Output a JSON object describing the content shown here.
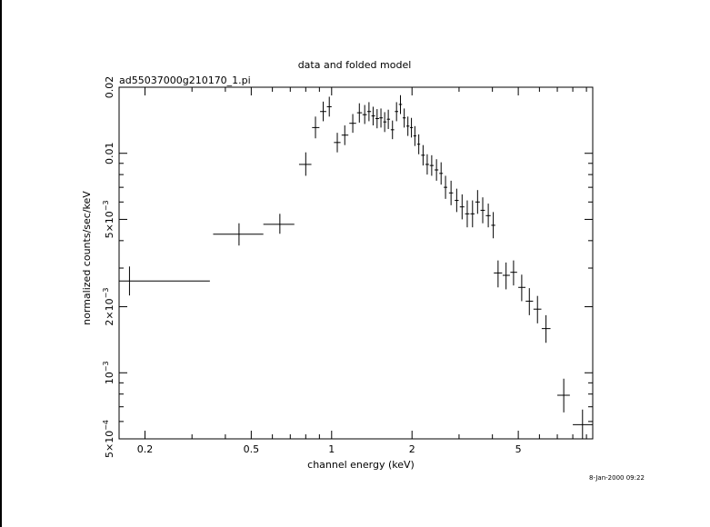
{
  "chart_data": {
    "type": "scatter",
    "title": "data and folded model",
    "subtitle": "ad55037000g210170_1.pi",
    "xlabel": "channel energy (keV)",
    "ylabel": "normalized counts/sec/keV",
    "x_scale": "log",
    "y_scale": "log",
    "xlim": [
      0.16,
      9.5
    ],
    "ylim": [
      0.0005,
      0.02
    ],
    "x_ticks": [
      {
        "value": 0.2,
        "label": "0.2"
      },
      {
        "value": 0.5,
        "label": "0.5"
      },
      {
        "value": 1,
        "label": "1"
      },
      {
        "value": 2,
        "label": "2"
      },
      {
        "value": 5,
        "label": "5"
      }
    ],
    "y_ticks": [
      {
        "value": 0.0005,
        "label": "5×10",
        "exp": "−4"
      },
      {
        "value": 0.001,
        "label": "10",
        "exp": "−3"
      },
      {
        "value": 0.002,
        "label": "2×10",
        "exp": "−3"
      },
      {
        "value": 0.005,
        "label": "5×10",
        "exp": "−3"
      },
      {
        "value": 0.01,
        "label": "0.01",
        "exp": ""
      },
      {
        "value": 0.02,
        "label": "0.02",
        "exp": ""
      }
    ],
    "grid": false,
    "series": [
      {
        "points": [
          {
            "x": 0.175,
            "y": 0.00262,
            "xlo": 0.16,
            "xhi": 0.35,
            "ylo": 0.00225,
            "yhi": 0.00305
          },
          {
            "x": 0.45,
            "y": 0.00428,
            "xlo": 0.36,
            "xhi": 0.555,
            "ylo": 0.0038,
            "yhi": 0.0048
          },
          {
            "x": 0.64,
            "y": 0.00475,
            "xlo": 0.555,
            "xhi": 0.725,
            "ylo": 0.0043,
            "yhi": 0.0053
          },
          {
            "x": 0.8,
            "y": 0.0089,
            "xlo": 0.755,
            "xhi": 0.84,
            "ylo": 0.0079,
            "yhi": 0.0101
          },
          {
            "x": 0.87,
            "y": 0.0131,
            "xlo": 0.845,
            "xhi": 0.9,
            "ylo": 0.0117,
            "yhi": 0.0147
          },
          {
            "x": 0.93,
            "y": 0.0155,
            "xlo": 0.905,
            "xhi": 0.955,
            "ylo": 0.014,
            "yhi": 0.0172
          },
          {
            "x": 0.98,
            "y": 0.0163,
            "xlo": 0.96,
            "xhi": 1.0,
            "ylo": 0.0147,
            "yhi": 0.0181
          },
          {
            "x": 1.05,
            "y": 0.0112,
            "xlo": 1.02,
            "xhi": 1.08,
            "ylo": 0.0101,
            "yhi": 0.0124
          },
          {
            "x": 1.12,
            "y": 0.0121,
            "xlo": 1.09,
            "xhi": 1.155,
            "ylo": 0.0109,
            "yhi": 0.0134
          },
          {
            "x": 1.2,
            "y": 0.0137,
            "xlo": 1.165,
            "xhi": 1.235,
            "ylo": 0.0124,
            "yhi": 0.0151
          },
          {
            "x": 1.27,
            "y": 0.0153,
            "xlo": 1.245,
            "xhi": 1.3,
            "ylo": 0.0138,
            "yhi": 0.0169
          },
          {
            "x": 1.33,
            "y": 0.015,
            "xlo": 1.305,
            "xhi": 1.355,
            "ylo": 0.0136,
            "yhi": 0.0166
          },
          {
            "x": 1.38,
            "y": 0.0155,
            "xlo": 1.36,
            "xhi": 1.405,
            "ylo": 0.014,
            "yhi": 0.0171
          },
          {
            "x": 1.43,
            "y": 0.0148,
            "xlo": 1.41,
            "xhi": 1.455,
            "ylo": 0.0134,
            "yhi": 0.0163
          },
          {
            "x": 1.48,
            "y": 0.0144,
            "xlo": 1.46,
            "xhi": 1.505,
            "ylo": 0.013,
            "yhi": 0.0159
          },
          {
            "x": 1.53,
            "y": 0.0145,
            "xlo": 1.51,
            "xhi": 1.555,
            "ylo": 0.0131,
            "yhi": 0.016
          },
          {
            "x": 1.58,
            "y": 0.0139,
            "xlo": 1.56,
            "xhi": 1.605,
            "ylo": 0.0125,
            "yhi": 0.0154
          },
          {
            "x": 1.63,
            "y": 0.0143,
            "xlo": 1.61,
            "xhi": 1.655,
            "ylo": 0.0129,
            "yhi": 0.0158
          },
          {
            "x": 1.69,
            "y": 0.0128,
            "xlo": 1.665,
            "xhi": 1.715,
            "ylo": 0.0116,
            "yhi": 0.0141
          },
          {
            "x": 1.75,
            "y": 0.0155,
            "xlo": 1.725,
            "xhi": 1.775,
            "ylo": 0.014,
            "yhi": 0.0171
          },
          {
            "x": 1.81,
            "y": 0.0167,
            "xlo": 1.785,
            "xhi": 1.835,
            "ylo": 0.0151,
            "yhi": 0.0184
          },
          {
            "x": 1.87,
            "y": 0.0145,
            "xlo": 1.845,
            "xhi": 1.895,
            "ylo": 0.0131,
            "yhi": 0.016
          },
          {
            "x": 1.93,
            "y": 0.0133,
            "xlo": 1.905,
            "xhi": 1.955,
            "ylo": 0.012,
            "yhi": 0.0147
          },
          {
            "x": 1.99,
            "y": 0.0131,
            "xlo": 1.965,
            "xhi": 2.015,
            "ylo": 0.0118,
            "yhi": 0.0145
          },
          {
            "x": 2.05,
            "y": 0.012,
            "xlo": 2.025,
            "xhi": 2.075,
            "ylo": 0.0108,
            "yhi": 0.0133
          },
          {
            "x": 2.12,
            "y": 0.011,
            "xlo": 2.09,
            "xhi": 2.145,
            "ylo": 0.0099,
            "yhi": 0.0122
          },
          {
            "x": 2.2,
            "y": 0.0098,
            "xlo": 2.165,
            "xhi": 2.235,
            "ylo": 0.0088,
            "yhi": 0.0109
          },
          {
            "x": 2.28,
            "y": 0.0089,
            "xlo": 2.245,
            "xhi": 2.315,
            "ylo": 0.008,
            "yhi": 0.0099
          },
          {
            "x": 2.37,
            "y": 0.0088,
            "xlo": 2.33,
            "xhi": 2.41,
            "ylo": 0.0079,
            "yhi": 0.0098
          },
          {
            "x": 2.47,
            "y": 0.0084,
            "xlo": 2.43,
            "xhi": 2.51,
            "ylo": 0.0075,
            "yhi": 0.0094
          },
          {
            "x": 2.57,
            "y": 0.0081,
            "xlo": 2.53,
            "xhi": 2.61,
            "ylo": 0.0072,
            "yhi": 0.0091
          },
          {
            "x": 2.67,
            "y": 0.007,
            "xlo": 2.63,
            "xhi": 2.71,
            "ylo": 0.0062,
            "yhi": 0.0079
          },
          {
            "x": 2.8,
            "y": 0.0066,
            "xlo": 2.75,
            "xhi": 2.85,
            "ylo": 0.0058,
            "yhi": 0.0075
          },
          {
            "x": 2.94,
            "y": 0.0061,
            "xlo": 2.89,
            "xhi": 2.99,
            "ylo": 0.0054,
            "yhi": 0.0069
          },
          {
            "x": 3.08,
            "y": 0.0057,
            "xlo": 3.02,
            "xhi": 3.14,
            "ylo": 0.005,
            "yhi": 0.0065
          },
          {
            "x": 3.22,
            "y": 0.0053,
            "xlo": 3.16,
            "xhi": 3.28,
            "ylo": 0.0046,
            "yhi": 0.0061
          },
          {
            "x": 3.37,
            "y": 0.0053,
            "xlo": 3.31,
            "xhi": 3.43,
            "ylo": 0.0046,
            "yhi": 0.0061
          },
          {
            "x": 3.52,
            "y": 0.006,
            "xlo": 3.45,
            "xhi": 3.59,
            "ylo": 0.0053,
            "yhi": 0.0068
          },
          {
            "x": 3.68,
            "y": 0.0055,
            "xlo": 3.61,
            "xhi": 3.75,
            "ylo": 0.0048,
            "yhi": 0.0063
          },
          {
            "x": 3.86,
            "y": 0.0052,
            "xlo": 3.78,
            "xhi": 3.94,
            "ylo": 0.0046,
            "yhi": 0.0059
          },
          {
            "x": 4.03,
            "y": 0.0047,
            "xlo": 3.96,
            "xhi": 4.1,
            "ylo": 0.0041,
            "yhi": 0.0054
          },
          {
            "x": 4.2,
            "y": 0.00285,
            "xlo": 4.05,
            "xhi": 4.35,
            "ylo": 0.00245,
            "yhi": 0.00325
          },
          {
            "x": 4.5,
            "y": 0.00278,
            "xlo": 4.37,
            "xhi": 4.65,
            "ylo": 0.0024,
            "yhi": 0.00318
          },
          {
            "x": 4.8,
            "y": 0.00287,
            "xlo": 4.67,
            "xhi": 4.95,
            "ylo": 0.0025,
            "yhi": 0.00325
          },
          {
            "x": 5.15,
            "y": 0.00245,
            "xlo": 5.0,
            "xhi": 5.32,
            "ylo": 0.00212,
            "yhi": 0.0028
          },
          {
            "x": 5.5,
            "y": 0.00212,
            "xlo": 5.33,
            "xhi": 5.68,
            "ylo": 0.00183,
            "yhi": 0.00243
          },
          {
            "x": 5.9,
            "y": 0.00195,
            "xlo": 5.7,
            "xhi": 6.1,
            "ylo": 0.00168,
            "yhi": 0.00224
          },
          {
            "x": 6.35,
            "y": 0.00159,
            "xlo": 6.12,
            "xhi": 6.6,
            "ylo": 0.00137,
            "yhi": 0.00183
          },
          {
            "x": 7.4,
            "y": 0.00079,
            "xlo": 7.0,
            "xhi": 7.8,
            "ylo": 0.00066,
            "yhi": 0.00094
          },
          {
            "x": 8.7,
            "y": 0.00058,
            "xlo": 8.0,
            "xhi": 9.5,
            "ylo": 0.0005,
            "yhi": 0.00068
          }
        ]
      }
    ]
  },
  "footer": {
    "timestamp": "8-Jan-2000 09:22"
  }
}
